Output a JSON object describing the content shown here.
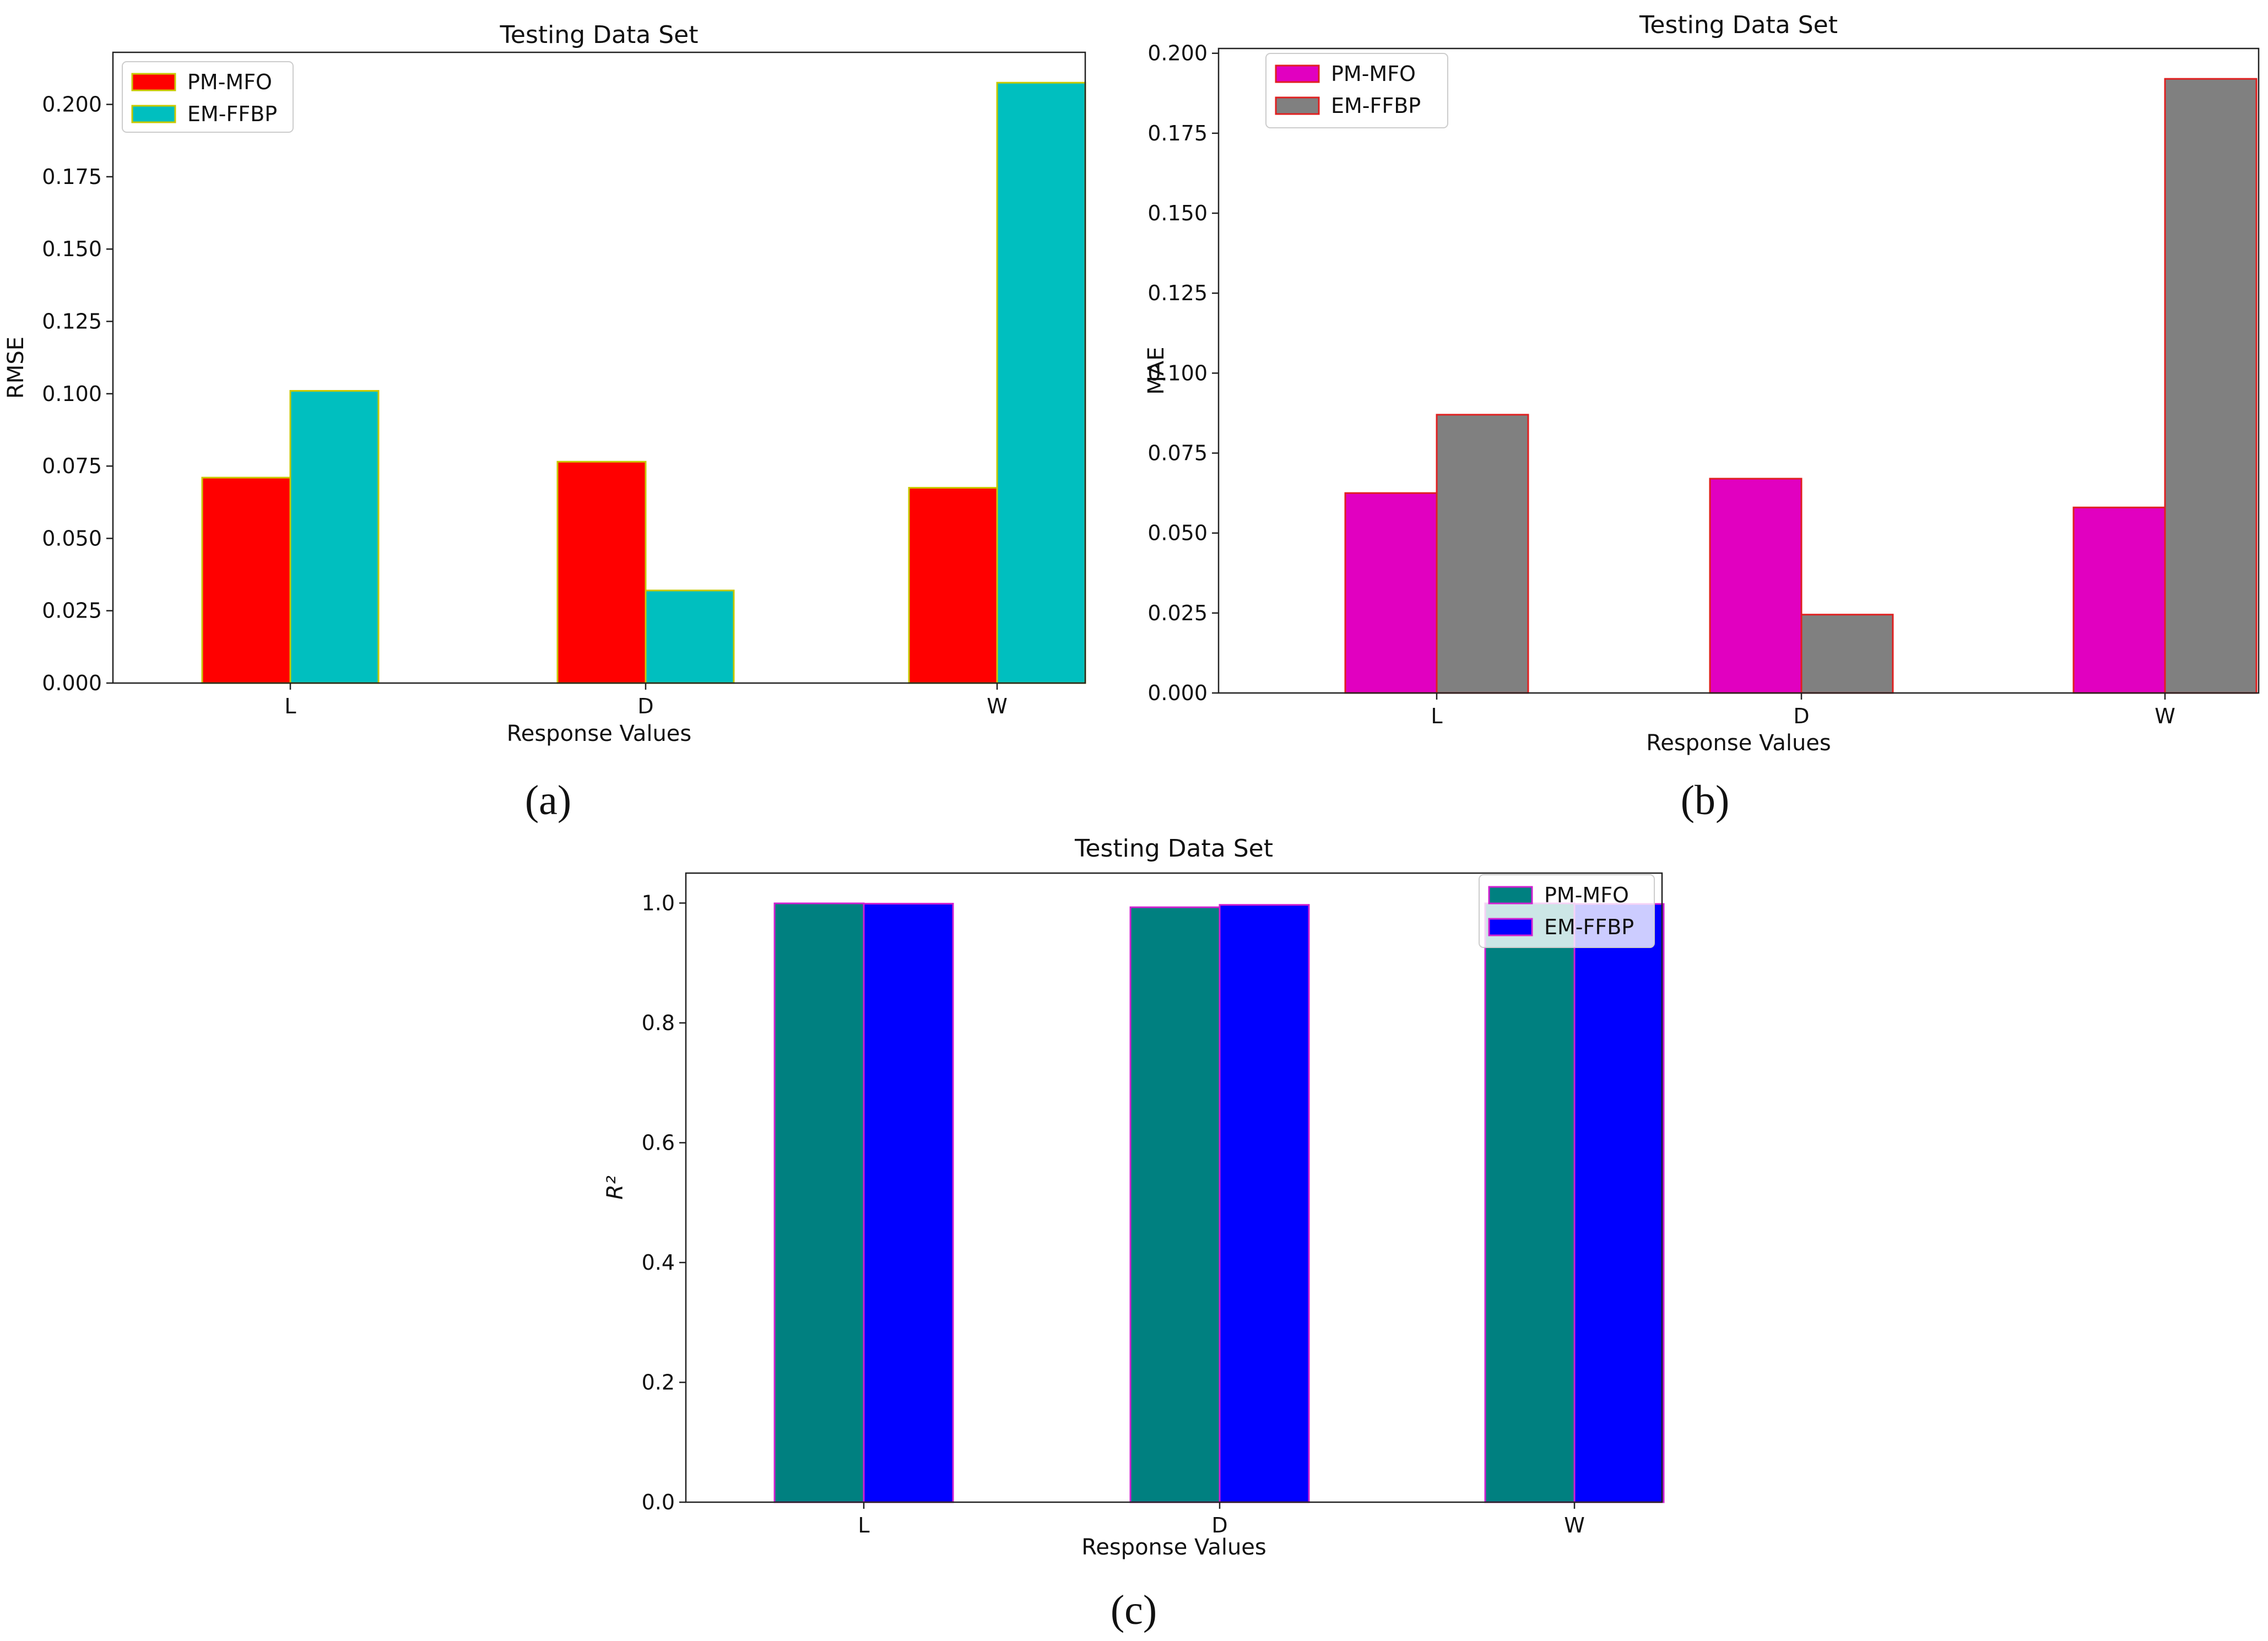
{
  "chart_data": [
    {
      "type": "bar",
      "panel_label": "(a)",
      "title": "Testing Data Set",
      "xlabel": "Response Values",
      "ylabel": "RMSE",
      "categories": [
        "L",
        "D",
        "W"
      ],
      "ylim": [
        0,
        0.218
      ],
      "yticks": [
        0.0,
        0.025,
        0.05,
        0.075,
        0.1,
        0.125,
        0.15,
        0.175,
        0.2
      ],
      "ytick_labels": [
        "0.000",
        "0.025",
        "0.050",
        "0.075",
        "0.100",
        "0.125",
        "0.150",
        "0.175",
        "0.200"
      ],
      "legend_position": "upper-left",
      "series": [
        {
          "name": "PM-MFO",
          "color": "#ff0000",
          "edge": "#c8c800",
          "values": [
            0.071,
            0.0765,
            0.0675
          ]
        },
        {
          "name": "EM-FFBP",
          "color": "#00bfbf",
          "edge": "#c8c800",
          "values": [
            0.101,
            0.032,
            0.2075
          ]
        }
      ]
    },
    {
      "type": "bar",
      "panel_label": "(b)",
      "title": "Testing Data Set",
      "xlabel": "Response Values",
      "ylabel": "MAE",
      "categories": [
        "L",
        "D",
        "W"
      ],
      "ylim": [
        0,
        0.2015
      ],
      "yticks": [
        0.0,
        0.025,
        0.05,
        0.075,
        0.1,
        0.125,
        0.15,
        0.175,
        0.2
      ],
      "ytick_labels": [
        "0.000",
        "0.025",
        "0.050",
        "0.075",
        "0.100",
        "0.125",
        "0.150",
        "0.175",
        "0.200"
      ],
      "legend_position": "upper-left",
      "series": [
        {
          "name": "PM-MFO",
          "color": "#e100c0",
          "edge": "#e02020",
          "values": [
            0.0625,
            0.067,
            0.058
          ]
        },
        {
          "name": "EM-FFBP",
          "color": "#808080",
          "edge": "#e02020",
          "values": [
            0.087,
            0.0245,
            0.192
          ]
        }
      ]
    },
    {
      "type": "bar",
      "panel_label": "(c)",
      "title": "Testing Data Set",
      "xlabel": "Response Values",
      "ylabel": "R²",
      "categories": [
        "L",
        "D",
        "W"
      ],
      "ylim": [
        0,
        1.05
      ],
      "yticks": [
        0.0,
        0.2,
        0.4,
        0.6,
        0.8,
        1.0
      ],
      "ytick_labels": [
        "0.0",
        "0.2",
        "0.4",
        "0.6",
        "0.8",
        "1.0"
      ],
      "legend_position": "upper-right",
      "series": [
        {
          "name": "PM-MFO",
          "color": "#008080",
          "edge": "#d020d0",
          "values": [
            0.9995,
            0.993,
            0.9995
          ]
        },
        {
          "name": "EM-FFBP",
          "color": "#0000ff",
          "edge": "#d020d0",
          "values": [
            0.999,
            0.997,
            0.9985
          ]
        }
      ]
    }
  ]
}
